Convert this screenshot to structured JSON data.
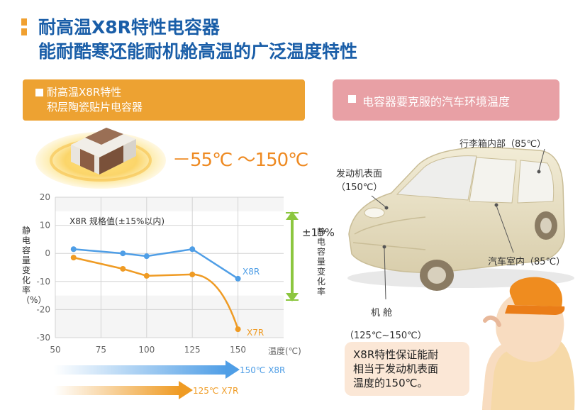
{
  "title": {
    "line1": "耐高温X8R特性电容器",
    "line2": "能耐酷寒还能耐机舱高温的广泛温度特性"
  },
  "left_banner": {
    "line1": "耐高温X8R特性",
    "line2": "积层陶瓷贴片电容器"
  },
  "right_banner": {
    "label": "电容器要克服的汽车环境温度"
  },
  "temp_range": "－55℃ ～150℃",
  "chart_data": {
    "type": "line",
    "x": [
      60,
      87,
      100,
      125,
      150
    ],
    "series": [
      {
        "name": "X8R",
        "values": [
          1.5,
          0,
          -1,
          1.5,
          -9
        ],
        "color": "#4f9ee6"
      },
      {
        "name": "X7R",
        "values": [
          -1.5,
          -5.5,
          -8,
          -7.5,
          -27
        ],
        "color": "#ef9b24"
      }
    ],
    "xlim": [
      50,
      175
    ],
    "ylim": [
      -30,
      20
    ],
    "x_ticks": [
      "50",
      "75",
      "100",
      "125",
      "150"
    ],
    "y_ticks": [
      "20",
      "10",
      "0",
      "-10",
      "-20",
      "-30"
    ],
    "xlabel": "温度(℃)",
    "ylabel": "静电容量变化率（%）",
    "spec_label": "X8R 规格值(±15%以内)",
    "spec_band": [
      -15,
      15
    ],
    "tolerance_label": "±15%",
    "tolerance_vertical_label": "静电容量变化率"
  },
  "range_arrows": [
    {
      "label": "150℃ X8R",
      "color": "#4f9ee6"
    },
    {
      "label": "125℃ X7R",
      "color": "#ef9b24"
    }
  ],
  "car_labels": {
    "trunk": "行李箱内部（85℃）",
    "engine_surface_1": "发动机表面",
    "engine_surface_2": "（150℃）",
    "cabin": "汽车室内（85℃）",
    "engine_room": "机 舱",
    "range": "（125℃~150℃）"
  },
  "bubble": {
    "line1": "X8R特性保证能耐",
    "line2": "相当于发动机表面",
    "line3": "温度的150℃。"
  }
}
